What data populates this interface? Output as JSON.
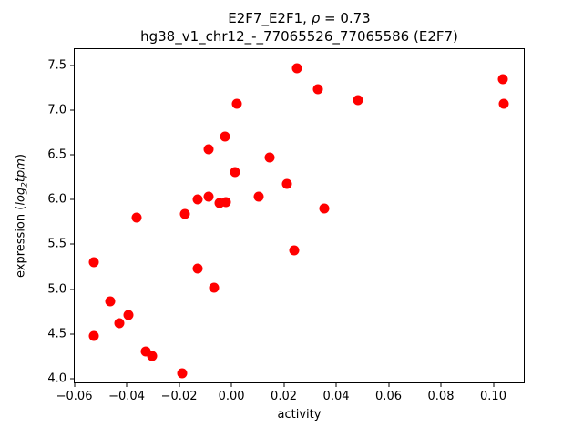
{
  "chart_data": {
    "type": "scatter",
    "title": {
      "line1_prefix": "E2F7_E2F1, ",
      "rho": "ρ",
      "line1_suffix": " = 0.73",
      "line2": "hg38_v1_chr12_-_77065526_77065586 (E2F7)"
    },
    "xlabel": "activity",
    "ylabel": {
      "prefix": "expression (",
      "log": "log",
      "sub": "2",
      "tpm": "tpm",
      "suffix": ")"
    },
    "xlim": [
      -0.0602,
      0.112
    ],
    "ylim": [
      3.95,
      7.69
    ],
    "grid": false,
    "legend": null,
    "marker_color": "#ff0000",
    "x_ticks": [
      {
        "value": -0.06,
        "label": "−0.06"
      },
      {
        "value": -0.04,
        "label": "−0.04"
      },
      {
        "value": -0.02,
        "label": "−0.02"
      },
      {
        "value": 0.0,
        "label": "0.00"
      },
      {
        "value": 0.02,
        "label": "0.02"
      },
      {
        "value": 0.04,
        "label": "0.04"
      },
      {
        "value": 0.06,
        "label": "0.06"
      },
      {
        "value": 0.08,
        "label": "0.08"
      },
      {
        "value": 0.1,
        "label": "0.10"
      }
    ],
    "y_ticks": [
      {
        "value": 4.0,
        "label": "4.0"
      },
      {
        "value": 4.5,
        "label": "4.5"
      },
      {
        "value": 5.0,
        "label": "5.0"
      },
      {
        "value": 5.5,
        "label": "5.5"
      },
      {
        "value": 6.0,
        "label": "6.0"
      },
      {
        "value": 6.5,
        "label": "6.5"
      },
      {
        "value": 7.0,
        "label": "7.0"
      },
      {
        "value": 7.5,
        "label": "7.5"
      }
    ],
    "points": [
      {
        "x": -0.0525,
        "y": 5.3
      },
      {
        "x": -0.0525,
        "y": 4.48
      },
      {
        "x": -0.0464,
        "y": 4.86
      },
      {
        "x": -0.0428,
        "y": 4.62
      },
      {
        "x": -0.0393,
        "y": 4.71
      },
      {
        "x": -0.0362,
        "y": 5.8
      },
      {
        "x": -0.0327,
        "y": 4.31
      },
      {
        "x": -0.0302,
        "y": 4.25
      },
      {
        "x": -0.0188,
        "y": 4.06
      },
      {
        "x": -0.0178,
        "y": 5.84
      },
      {
        "x": -0.013,
        "y": 6.0
      },
      {
        "x": -0.013,
        "y": 5.23
      },
      {
        "x": -0.0087,
        "y": 6.56
      },
      {
        "x": -0.0087,
        "y": 6.03
      },
      {
        "x": -0.0067,
        "y": 5.02
      },
      {
        "x": -0.0045,
        "y": 5.96
      },
      {
        "x": -0.0025,
        "y": 6.7
      },
      {
        "x": -0.002,
        "y": 5.97
      },
      {
        "x": 0.0013,
        "y": 6.31
      },
      {
        "x": 0.002,
        "y": 7.07
      },
      {
        "x": 0.0104,
        "y": 6.03
      },
      {
        "x": 0.0146,
        "y": 6.47
      },
      {
        "x": 0.0212,
        "y": 6.18
      },
      {
        "x": 0.0239,
        "y": 5.43
      },
      {
        "x": 0.0249,
        "y": 7.47
      },
      {
        "x": 0.0331,
        "y": 7.23
      },
      {
        "x": 0.0355,
        "y": 5.9
      },
      {
        "x": 0.0482,
        "y": 7.11
      },
      {
        "x": 0.1035,
        "y": 7.34
      },
      {
        "x": 0.104,
        "y": 7.07
      }
    ]
  }
}
